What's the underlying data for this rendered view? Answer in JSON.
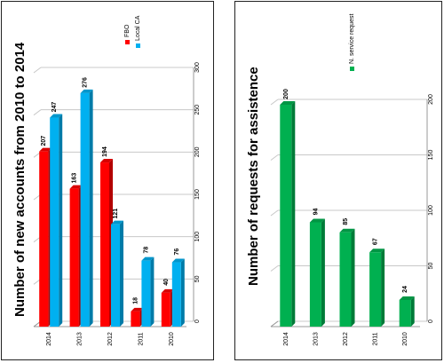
{
  "chart_data": [
    {
      "type": "bar",
      "title": "Number of new accounts from 2010 to 2014",
      "categories": [
        "2014",
        "2013",
        "2012",
        "2011",
        "2010"
      ],
      "series": [
        {
          "name": "FBO",
          "values": [
            207,
            163,
            194,
            18,
            40
          ],
          "color": "#ff0000"
        },
        {
          "name": "Local CA",
          "values": [
            247,
            276,
            121,
            78,
            76
          ],
          "color": "#00b0f0"
        }
      ],
      "ylim": [
        0,
        300
      ],
      "yticks": [
        0,
        50,
        100,
        150,
        200,
        250,
        300
      ],
      "xlabel": "",
      "ylabel": "",
      "grid": true,
      "legend": "top-right",
      "orientation": "rotated-90"
    },
    {
      "type": "bar",
      "title": "Number of requests for assistence",
      "categories": [
        "2014",
        "2013",
        "2012",
        "2011",
        "2010"
      ],
      "series": [
        {
          "name": "N. service request",
          "values": [
            200,
            94,
            85,
            67,
            24
          ],
          "color": "#00b050"
        }
      ],
      "ylim": [
        0,
        200
      ],
      "yticks": [
        0,
        50,
        100,
        150,
        200
      ],
      "xlabel": "",
      "ylabel": "",
      "grid": true,
      "legend": "top-right",
      "orientation": "rotated-90"
    }
  ]
}
